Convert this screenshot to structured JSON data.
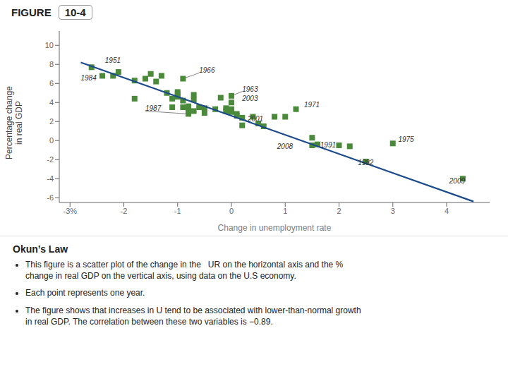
{
  "chart_data": {
    "type": "scatter",
    "title": "Okun’s Law",
    "header": {
      "label": "FIGURE",
      "number": "10-4"
    },
    "xlabel": "Change in unemployment rate",
    "ylabel": "Percentage change\nin real GDP",
    "xlim": [
      -3.2,
      4.8
    ],
    "ylim": [
      -6.5,
      11.5
    ],
    "xticks": [
      {
        "value": -3,
        "label": "-3%"
      },
      -2,
      -1,
      0,
      1,
      2,
      3,
      4
    ],
    "yticks": [
      -6,
      -4,
      -2,
      0,
      2,
      4,
      6,
      8,
      10
    ],
    "grid": false,
    "series": [
      {
        "type": "scatter",
        "color": "#4a8a3a",
        "marker": "square",
        "x": [
          -2.6,
          -2.4,
          -2.1,
          -1.8,
          -1.8,
          -1.6,
          -1.5,
          -1.4,
          -1.3,
          -1.2,
          -1.1,
          -1.1,
          -1.0,
          -1.0,
          -1.0,
          -0.9,
          -0.9,
          -0.9,
          -0.8,
          -0.8,
          -0.8,
          -0.7,
          -0.7,
          -0.7,
          -0.6,
          -0.5,
          -0.5,
          -0.3,
          -0.2,
          -0.1,
          -0.1,
          0.0,
          0.0,
          0.0,
          0.0,
          0.1,
          0.1,
          0.2,
          0.2,
          0.4,
          0.5,
          0.6,
          0.8,
          1.0,
          1.2,
          1.5,
          1.5,
          1.6,
          2.0,
          2.2,
          2.5,
          3.0,
          4.3,
          -2.2
        ],
        "values": [
          7.7,
          6.8,
          7.2,
          6.3,
          4.4,
          6.5,
          7.0,
          6.2,
          6.8,
          5.0,
          4.4,
          3.5,
          5.1,
          4.6,
          4.9,
          6.5,
          4.2,
          3.5,
          3.2,
          3.6,
          2.8,
          4.8,
          3.1,
          4.3,
          3.5,
          3.4,
          2.9,
          3.3,
          4.5,
          3.4,
          3.1,
          3.3,
          3.0,
          4.7,
          4.0,
          2.8,
          2.6,
          2.4,
          1.6,
          2.5,
          1.8,
          1.5,
          2.5,
          2.5,
          3.3,
          0.3,
          -0.5,
          -0.4,
          -0.5,
          -0.6,
          -2.2,
          -0.3,
          -4.0,
          6.8
        ]
      },
      {
        "type": "line",
        "color": "#1a4a8a",
        "line_style": "solid",
        "x": [
          -2.8,
          4.5
        ],
        "values": [
          8.2,
          -6.4
        ]
      }
    ],
    "annotations": [
      {
        "text": "1951",
        "x": -2.35,
        "y": 8.15,
        "arrow": false
      },
      {
        "text": "1984",
        "x": -2.8,
        "y": 6.35,
        "arrow": false
      },
      {
        "text": "1966",
        "x": -0.6,
        "y": 7.1,
        "arrow": true,
        "point": [
          -0.9,
          6.5
        ]
      },
      {
        "text": "1987",
        "x": -1.6,
        "y": 3.1,
        "arrow": true,
        "point": [
          -0.8,
          2.8
        ]
      },
      {
        "text": "1963",
        "x": 0.2,
        "y": 5.15,
        "arrow": true,
        "point": [
          0.0,
          4.7
        ]
      },
      {
        "text": "2003",
        "x": 0.2,
        "y": 4.2,
        "arrow": false
      },
      {
        "text": "1971",
        "x": 1.35,
        "y": 3.5,
        "arrow": false
      },
      {
        "text": "2001",
        "x": 0.3,
        "y": 2.05,
        "arrow": true,
        "point": [
          0.2,
          2.4
        ]
      },
      {
        "text": "2008",
        "x": 0.85,
        "y": -0.85,
        "arrow": false
      },
      {
        "text": "1991",
        "x": 1.65,
        "y": -0.75,
        "arrow": false
      },
      {
        "text": "1975",
        "x": 3.1,
        "y": -0.15,
        "arrow": false
      },
      {
        "text": "1982",
        "x": 2.35,
        "y": -2.6,
        "arrow": false
      },
      {
        "text": "2009",
        "x": 4.05,
        "y": -4.5,
        "arrow": false
      }
    ],
    "notes": [
      "This figure is a scatter plot of the change in the   UR on the horizontal axis and the %\nchange in real GDP on the vertical axis, using data on the U.S economy.",
      "Each point represents one year.",
      "The figure shows that increases in U tend to be associated with lower-than-normal growth\nin real GDP. The correlation between these two variables is −0.89."
    ]
  }
}
